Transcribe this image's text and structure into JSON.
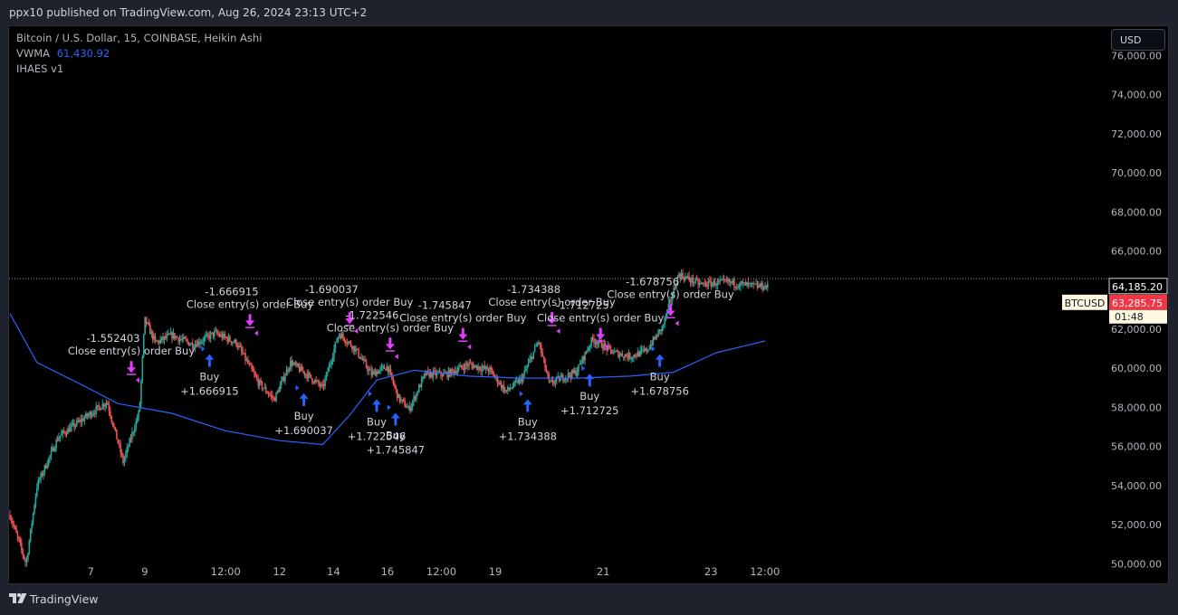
{
  "header": {
    "published": "ppx10 published on TradingView.com, Aug 26, 2024 23:13 UTC+2"
  },
  "legend": {
    "symbol": "Bitcoin / U.S. Dollar, 15, COINBASE, Heikin Ashi",
    "vwma_label": "VWMA",
    "vwma_value": "61,430.92",
    "strategy": "IHAES v1"
  },
  "currency_button": "USD",
  "footer": {
    "brand": "TradingView"
  },
  "colors": {
    "up": "#26a69a",
    "down": "#ef5350",
    "vwma": "#2962ff",
    "buy": "#2962ff",
    "close": "#e040fb",
    "bg": "#000000"
  },
  "chart_data": {
    "type": "candlestick",
    "title": "Bitcoin / U.S. Dollar, 15, COINBASE, Heikin Ashi",
    "ylim": [
      49000,
      77500
    ],
    "y_ticks": [
      "50,000.00",
      "52,000.00",
      "54,000.00",
      "56,000.00",
      "58,000.00",
      "60,000.00",
      "62,000.00",
      "64,000.00",
      "66,000.00",
      "68,000.00",
      "70,000.00",
      "72,000.00",
      "74,000.00",
      "76,000.00"
    ],
    "x_range": [
      5.5,
      25.85
    ],
    "x_ticks": [
      {
        "x": 7,
        "label": "7"
      },
      {
        "x": 8,
        "label": "9"
      },
      {
        "x": 9.5,
        "label": "12:00"
      },
      {
        "x": 10.5,
        "label": "12"
      },
      {
        "x": 11.5,
        "label": "14"
      },
      {
        "x": 12.5,
        "label": "16"
      },
      {
        "x": 13.5,
        "label": "12:00"
      },
      {
        "x": 14.5,
        "label": "19"
      },
      {
        "x": 16.5,
        "label": "21"
      },
      {
        "x": 18.5,
        "label": "23"
      },
      {
        "x": 19.5,
        "label": "12:00"
      }
    ],
    "price_path": [
      [
        5.5,
        52500
      ],
      [
        5.8,
        50000
      ],
      [
        6.0,
        54000
      ],
      [
        6.4,
        56500
      ],
      [
        6.9,
        57500
      ],
      [
        7.3,
        58300
      ],
      [
        7.6,
        55200
      ],
      [
        7.9,
        57800
      ],
      [
        8.0,
        62500
      ],
      [
        8.2,
        61300
      ],
      [
        8.5,
        61700
      ],
      [
        8.9,
        61200
      ],
      [
        9.3,
        61800
      ],
      [
        9.7,
        61300
      ],
      [
        10.1,
        59300
      ],
      [
        10.4,
        58400
      ],
      [
        10.7,
        60300
      ],
      [
        11.0,
        59700
      ],
      [
        11.3,
        59000
      ],
      [
        11.6,
        61800
      ],
      [
        11.9,
        61000
      ],
      [
        12.2,
        59700
      ],
      [
        12.5,
        60100
      ],
      [
        12.7,
        58500
      ],
      [
        12.9,
        57900
      ],
      [
        13.2,
        59700
      ],
      [
        13.6,
        59700
      ],
      [
        14.0,
        60200
      ],
      [
        14.4,
        59900
      ],
      [
        14.7,
        58800
      ],
      [
        15.0,
        59500
      ],
      [
        15.3,
        61400
      ],
      [
        15.5,
        59200
      ],
      [
        15.8,
        59600
      ],
      [
        16.0,
        59800
      ],
      [
        16.3,
        61500
      ],
      [
        16.7,
        60800
      ],
      [
        17.0,
        60600
      ],
      [
        17.3,
        60900
      ],
      [
        17.6,
        62100
      ],
      [
        17.9,
        64800
      ],
      [
        18.3,
        64300
      ],
      [
        18.8,
        64400
      ],
      [
        19.3,
        64200
      ],
      [
        19.55,
        64185.2
      ]
    ],
    "vwma": [
      [
        5.5,
        62800
      ],
      [
        6.0,
        60300
      ],
      [
        6.8,
        59200
      ],
      [
        7.5,
        58200
      ],
      [
        8.5,
        57700
      ],
      [
        9.5,
        56800
      ],
      [
        10.5,
        56300
      ],
      [
        11.3,
        56100
      ],
      [
        11.8,
        57600
      ],
      [
        12.3,
        59400
      ],
      [
        13.0,
        59900
      ],
      [
        14.0,
        59600
      ],
      [
        15.0,
        59500
      ],
      [
        16.0,
        59500
      ],
      [
        17.0,
        59600
      ],
      [
        17.8,
        59800
      ],
      [
        18.6,
        60800
      ],
      [
        19.5,
        61400
      ]
    ],
    "signals": [
      {
        "type": "close",
        "x": 7.75,
        "price": 59400,
        "label": "Close entry(s) order Buy",
        "value": "-1.552403"
      },
      {
        "type": "buy",
        "x": 9.2,
        "price": 61000,
        "label": "Buy",
        "value": "+1.666915"
      },
      {
        "type": "close",
        "x": 9.95,
        "price": 61800,
        "label": "Close entry(s) order Buy",
        "value": "-1.666915"
      },
      {
        "type": "buy",
        "x": 10.95,
        "price": 59000,
        "label": "Buy",
        "value": "+1.690037"
      },
      {
        "type": "close",
        "x": 11.8,
        "price": 61900,
        "label": "Close entry(s) order Buy",
        "value": "-1.690037"
      },
      {
        "type": "buy",
        "x": 12.3,
        "price": 58700,
        "label": "Buy",
        "value": "+1.722546"
      },
      {
        "type": "close",
        "x": 12.55,
        "price": 60600,
        "label": "Close entry(s) order Buy",
        "value": "-1.722546"
      },
      {
        "type": "buy",
        "x": 12.65,
        "price": 58000,
        "label": "Buy",
        "value": "+1.745847"
      },
      {
        "type": "close",
        "x": 13.9,
        "price": 61100,
        "label": "Close entry(s) order Buy",
        "value": "-1.745847"
      },
      {
        "type": "buy",
        "x": 15.1,
        "price": 58700,
        "label": "Buy",
        "value": "+1.734388"
      },
      {
        "type": "close",
        "x": 15.55,
        "price": 61900,
        "label": "Close entry(s) order Buy",
        "value": "-1.734388"
      },
      {
        "type": "buy",
        "x": 16.25,
        "price": 60000,
        "label": "Buy",
        "value": "+1.712725"
      },
      {
        "type": "close",
        "x": 16.45,
        "price": 61100,
        "label": "Close entry(s) order Buy",
        "value": "-1.712725"
      },
      {
        "type": "buy",
        "x": 17.55,
        "price": 61000,
        "label": "Buy",
        "value": "+1.678756"
      },
      {
        "type": "close",
        "x": 17.75,
        "price": 62300,
        "label": "Close entry(s) order Buy",
        "value": "-1.678756"
      }
    ],
    "price_labels": {
      "last": {
        "value": 64185.2,
        "text": "64,185.20"
      },
      "symbol_tag": "BTCUSD",
      "marker": {
        "value": 63285.75,
        "text": "63,285.75"
      },
      "countdown": "01:48"
    }
  }
}
